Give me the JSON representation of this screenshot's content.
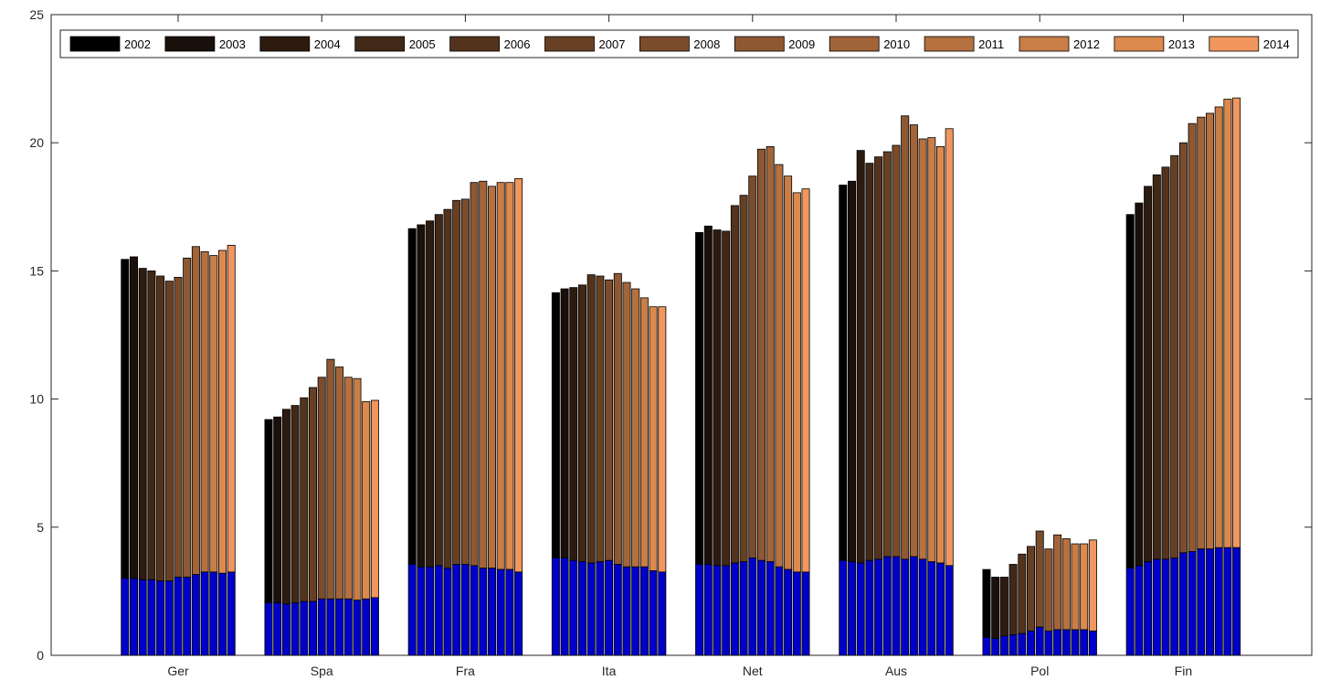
{
  "chart_data": {
    "type": "bar",
    "categories": [
      "Ger",
      "Spa",
      "Fra",
      "Ita",
      "Net",
      "Aus",
      "Pol",
      "Fin"
    ],
    "ylim": [
      0,
      25
    ],
    "yticks": [
      0,
      5,
      10,
      15,
      20,
      25
    ],
    "ytick_labels": [
      "0",
      "5",
      "10",
      "15",
      "20",
      "25"
    ],
    "legend_position": "top",
    "years": [
      "2002",
      "2003",
      "2004",
      "2005",
      "2006",
      "2007",
      "2008",
      "2009",
      "2010",
      "2011",
      "2012",
      "2013",
      "2014"
    ],
    "series": [
      {
        "name": "2002",
        "color": "#000000",
        "total": [
          15.45,
          9.2,
          16.65,
          14.15,
          16.5,
          18.35,
          3.35,
          17.2
        ],
        "blue": [
          3.0,
          2.05,
          3.55,
          3.8,
          3.55,
          3.7,
          0.7,
          3.4
        ]
      },
      {
        "name": "2003",
        "color": "#1a0f0a",
        "total": [
          15.55,
          9.3,
          16.8,
          14.3,
          16.75,
          18.5,
          3.05,
          17.65
        ],
        "blue": [
          3.0,
          2.05,
          3.45,
          3.8,
          3.55,
          3.65,
          0.65,
          3.5
        ]
      },
      {
        "name": "2004",
        "color": "#2d1b10",
        "total": [
          15.1,
          9.6,
          16.95,
          14.35,
          16.6,
          19.7,
          3.05,
          18.3
        ],
        "blue": [
          2.95,
          2.0,
          3.45,
          3.7,
          3.5,
          3.6,
          0.75,
          3.65
        ]
      },
      {
        "name": "2005",
        "color": "#412817",
        "total": [
          15.0,
          9.75,
          17.2,
          14.45,
          16.55,
          19.2,
          3.55,
          18.75
        ],
        "blue": [
          2.95,
          2.05,
          3.5,
          3.65,
          3.5,
          3.7,
          0.8,
          3.75
        ]
      },
      {
        "name": "2006",
        "color": "#54331d",
        "total": [
          14.8,
          10.05,
          17.4,
          14.85,
          17.55,
          19.45,
          3.95,
          19.05
        ],
        "blue": [
          2.9,
          2.1,
          3.4,
          3.6,
          3.6,
          3.75,
          0.85,
          3.75
        ]
      },
      {
        "name": "2007",
        "color": "#674024",
        "total": [
          14.6,
          10.45,
          17.75,
          14.8,
          17.95,
          19.65,
          4.25,
          19.5
        ],
        "blue": [
          2.9,
          2.1,
          3.55,
          3.65,
          3.65,
          3.85,
          0.95,
          3.8
        ]
      },
      {
        "name": "2008",
        "color": "#7b4c2b",
        "total": [
          14.75,
          10.85,
          17.8,
          14.65,
          18.7,
          19.9,
          4.85,
          20.0
        ],
        "blue": [
          3.05,
          2.2,
          3.55,
          3.7,
          3.8,
          3.85,
          1.1,
          4.0
        ]
      },
      {
        "name": "2009",
        "color": "#8e5832",
        "total": [
          15.5,
          11.55,
          18.45,
          14.9,
          19.75,
          21.05,
          4.15,
          20.75
        ],
        "blue": [
          3.05,
          2.2,
          3.5,
          3.55,
          3.7,
          3.75,
          0.95,
          4.05
        ]
      },
      {
        "name": "2010",
        "color": "#a26439",
        "total": [
          15.95,
          11.25,
          18.5,
          14.55,
          19.85,
          20.7,
          4.7,
          21.0
        ],
        "blue": [
          3.15,
          2.2,
          3.4,
          3.45,
          3.65,
          3.85,
          1.0,
          4.15
        ]
      },
      {
        "name": "2011",
        "color": "#b57140",
        "total": [
          15.75,
          10.85,
          18.3,
          14.3,
          19.15,
          20.15,
          4.55,
          21.15
        ],
        "blue": [
          3.25,
          2.2,
          3.4,
          3.45,
          3.45,
          3.75,
          1.0,
          4.15
        ]
      },
      {
        "name": "2012",
        "color": "#c97d47",
        "total": [
          15.6,
          10.8,
          18.45,
          13.95,
          18.7,
          20.2,
          4.35,
          21.4
        ],
        "blue": [
          3.25,
          2.15,
          3.35,
          3.45,
          3.35,
          3.65,
          1.0,
          4.2
        ]
      },
      {
        "name": "2013",
        "color": "#dc894e",
        "total": [
          15.8,
          9.9,
          18.45,
          13.6,
          18.05,
          19.85,
          4.35,
          21.7
        ],
        "blue": [
          3.2,
          2.2,
          3.35,
          3.3,
          3.25,
          3.6,
          1.0,
          4.2
        ]
      },
      {
        "name": "2014",
        "color": "#f0965e",
        "total": [
          16.0,
          9.95,
          18.6,
          13.6,
          18.2,
          20.55,
          4.5,
          21.75
        ],
        "blue": [
          3.25,
          2.25,
          3.25,
          3.25,
          3.25,
          3.5,
          0.95,
          4.2
        ]
      }
    ],
    "blue_color": "#0000c8"
  }
}
